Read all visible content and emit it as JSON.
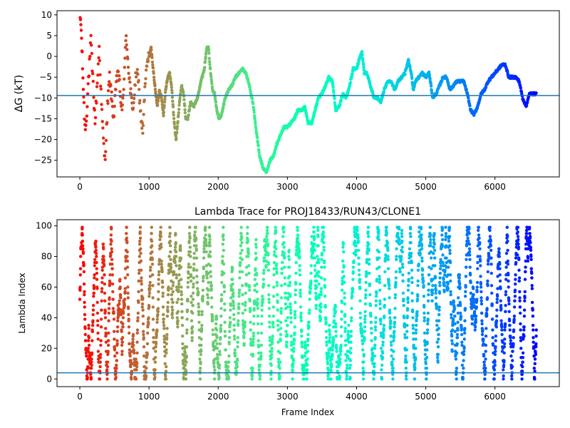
{
  "chart_data": [
    {
      "type": "scatter",
      "title": "",
      "xlabel": "",
      "ylabel": "ΔG (kT)",
      "xlim": [
        -330,
        6930
      ],
      "ylim": [
        -29,
        11
      ],
      "xticks": [
        0,
        1000,
        2000,
        3000,
        4000,
        5000,
        6000
      ],
      "yticks": [
        -25,
        -20,
        -15,
        -10,
        -5,
        0,
        5,
        10
      ],
      "hline": -9.4,
      "hline_color": "#1f77b4",
      "colormap": "rainbow",
      "trace": [
        [
          0,
          10
        ],
        [
          15,
          8
        ],
        [
          30,
          2
        ],
        [
          45,
          -5
        ],
        [
          60,
          -12
        ],
        [
          80,
          -18
        ],
        [
          100,
          -13
        ],
        [
          120,
          -7
        ],
        [
          140,
          -2
        ],
        [
          160,
          4
        ],
        [
          180,
          -3
        ],
        [
          200,
          -9
        ],
        [
          220,
          -16
        ],
        [
          240,
          -10
        ],
        [
          260,
          -4
        ],
        [
          280,
          2
        ],
        [
          300,
          -6
        ],
        [
          320,
          -14
        ],
        [
          340,
          -20
        ],
        [
          360,
          -25
        ],
        [
          380,
          -20
        ],
        [
          400,
          -12
        ],
        [
          430,
          -5
        ],
        [
          460,
          -10
        ],
        [
          490,
          -15
        ],
        [
          520,
          -8
        ],
        [
          550,
          -3
        ],
        [
          580,
          -8
        ],
        [
          610,
          -14
        ],
        [
          640,
          -5
        ],
        [
          670,
          5
        ],
        [
          700,
          -2
        ],
        [
          730,
          -8
        ],
        [
          760,
          -13
        ],
        [
          790,
          -9
        ],
        [
          820,
          -3
        ],
        [
          850,
          -7
        ],
        [
          880,
          -14
        ],
        [
          910,
          -18
        ],
        [
          940,
          -8
        ],
        [
          970,
          -2
        ],
        [
          1000,
          0
        ],
        [
          1030,
          2
        ],
        [
          1060,
          -3
        ],
        [
          1090,
          -8
        ],
        [
          1120,
          -12
        ],
        [
          1150,
          -8
        ],
        [
          1180,
          -10
        ],
        [
          1210,
          -14
        ],
        [
          1240,
          -8
        ],
        [
          1270,
          -5
        ],
        [
          1300,
          -4
        ],
        [
          1330,
          -8
        ],
        [
          1360,
          -15
        ],
        [
          1390,
          -20
        ],
        [
          1410,
          -17
        ],
        [
          1440,
          -11
        ],
        [
          1470,
          -7
        ],
        [
          1500,
          -9
        ],
        [
          1530,
          -15
        ],
        [
          1560,
          -15
        ],
        [
          1600,
          -11
        ],
        [
          1650,
          -12
        ],
        [
          1700,
          -10
        ],
        [
          1750,
          -6
        ],
        [
          1800,
          -3
        ],
        [
          1830,
          2
        ],
        [
          1860,
          2
        ],
        [
          1890,
          -4
        ],
        [
          1920,
          -8
        ],
        [
          1950,
          -9
        ],
        [
          1980,
          -13
        ],
        [
          2010,
          -15
        ],
        [
          2050,
          -14
        ],
        [
          2100,
          -10
        ],
        [
          2150,
          -8
        ],
        [
          2200,
          -7
        ],
        [
          2250,
          -5
        ],
        [
          2300,
          -4
        ],
        [
          2350,
          -3
        ],
        [
          2400,
          -4
        ],
        [
          2450,
          -7
        ],
        [
          2500,
          -11
        ],
        [
          2550,
          -18
        ],
        [
          2600,
          -24
        ],
        [
          2650,
          -27
        ],
        [
          2700,
          -28
        ],
        [
          2750,
          -25
        ],
        [
          2800,
          -24
        ],
        [
          2850,
          -21
        ],
        [
          2900,
          -19
        ],
        [
          2950,
          -17
        ],
        [
          3000,
          -17
        ],
        [
          3050,
          -16
        ],
        [
          3100,
          -15
        ],
        [
          3150,
          -13
        ],
        [
          3200,
          -13
        ],
        [
          3250,
          -12
        ],
        [
          3300,
          -16
        ],
        [
          3350,
          -16
        ],
        [
          3400,
          -13
        ],
        [
          3450,
          -10
        ],
        [
          3500,
          -9
        ],
        [
          3550,
          -7
        ],
        [
          3600,
          -5
        ],
        [
          3650,
          -6
        ],
        [
          3700,
          -13
        ],
        [
          3750,
          -12
        ],
        [
          3800,
          -9
        ],
        [
          3850,
          -10
        ],
        [
          3900,
          -7
        ],
        [
          3950,
          -3
        ],
        [
          4000,
          -3
        ],
        [
          4050,
          0
        ],
        [
          4080,
          1
        ],
        [
          4110,
          -4
        ],
        [
          4150,
          -4
        ],
        [
          4200,
          -7
        ],
        [
          4250,
          -10
        ],
        [
          4300,
          -10
        ],
        [
          4350,
          -11
        ],
        [
          4400,
          -8
        ],
        [
          4450,
          -6
        ],
        [
          4500,
          -6
        ],
        [
          4550,
          -8
        ],
        [
          4600,
          -6
        ],
        [
          4650,
          -5
        ],
        [
          4700,
          -4
        ],
        [
          4750,
          -1
        ],
        [
          4790,
          -4
        ],
        [
          4820,
          -8
        ],
        [
          4850,
          -6
        ],
        [
          4900,
          -5
        ],
        [
          4950,
          -4
        ],
        [
          5000,
          -5
        ],
        [
          5050,
          -4
        ],
        [
          5100,
          -10
        ],
        [
          5150,
          -9
        ],
        [
          5200,
          -7
        ],
        [
          5250,
          -5
        ],
        [
          5300,
          -5
        ],
        [
          5350,
          -8
        ],
        [
          5400,
          -7
        ],
        [
          5450,
          -6
        ],
        [
          5500,
          -6
        ],
        [
          5550,
          -6
        ],
        [
          5600,
          -9
        ],
        [
          5650,
          -13
        ],
        [
          5700,
          -14
        ],
        [
          5750,
          -12
        ],
        [
          5800,
          -9
        ],
        [
          5850,
          -8
        ],
        [
          5900,
          -6
        ],
        [
          5950,
          -5
        ],
        [
          6000,
          -4
        ],
        [
          6050,
          -3
        ],
        [
          6100,
          -2
        ],
        [
          6150,
          -2
        ],
        [
          6200,
          -5
        ],
        [
          6250,
          -5
        ],
        [
          6300,
          -5
        ],
        [
          6350,
          -6
        ],
        [
          6400,
          -10
        ],
        [
          6450,
          -12
        ],
        [
          6500,
          -9
        ],
        [
          6550,
          -9
        ],
        [
          6600,
          -9
        ]
      ]
    },
    {
      "type": "scatter",
      "title": "Lambda Trace for PROJ18433/RUN43/CLONE1",
      "xlabel": "Frame Index",
      "ylabel": "Lambda Index",
      "xlim": [
        -330,
        6930
      ],
      "ylim": [
        -5,
        104
      ],
      "xticks": [
        0,
        1000,
        2000,
        3000,
        4000,
        5000,
        6000
      ],
      "yticks": [
        0,
        20,
        40,
        60,
        80,
        100
      ],
      "hline": 4,
      "hline_color": "#1f77b4",
      "colormap": "rainbow",
      "frames": 6600,
      "lambda_max": 99
    }
  ]
}
